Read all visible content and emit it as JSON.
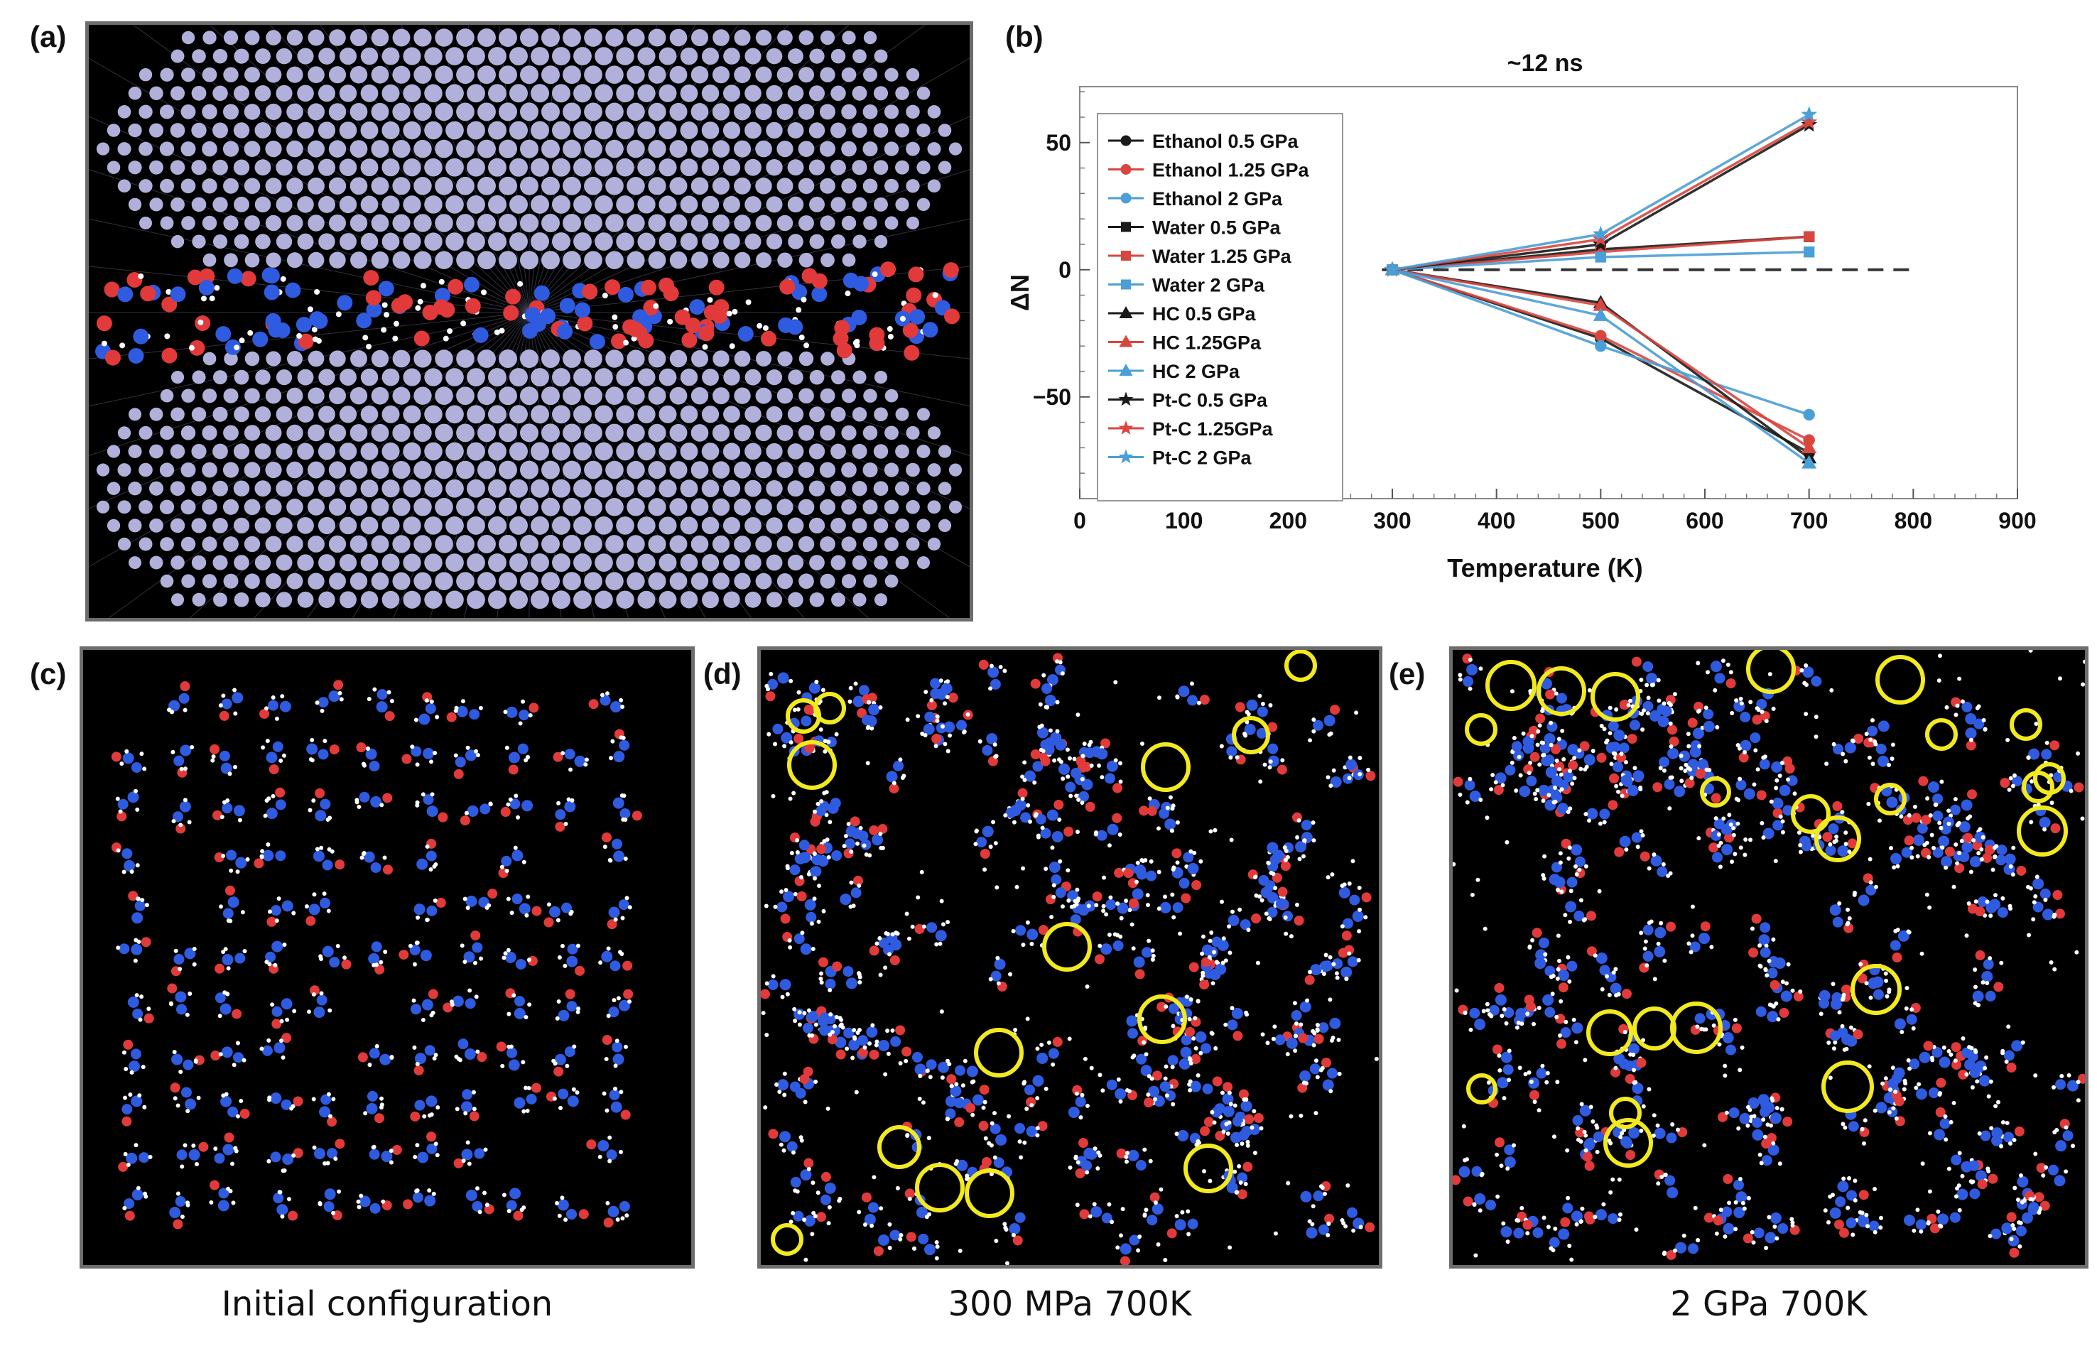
{
  "panels": {
    "a": {
      "label": "(a)"
    },
    "b": {
      "label": "(b)"
    },
    "c": {
      "label": "(c)",
      "caption": "Initial configuration"
    },
    "d": {
      "label": "(d)",
      "caption": "300 MPa 700K"
    },
    "e": {
      "label": "(e)",
      "caption": "2 GPa 700K"
    }
  },
  "colors": {
    "pt_atom": "#b9b9e6",
    "oxygen": "#e23a3a",
    "nitrogen": "#2f5be0",
    "hydrogen": "#ffffff",
    "highlight": "#f2ea1f",
    "black_series": "#1a1a1a",
    "red_series": "#d9463e",
    "blue_series": "#4a9fd6"
  },
  "chart_data": {
    "type": "line",
    "title": "~12 ns",
    "xlabel": "Temperature (K)",
    "ylabel": "ΔN",
    "xlim": [
      0,
      900
    ],
    "ylim": [
      -90,
      72
    ],
    "xticks": [
      0,
      100,
      200,
      300,
      400,
      500,
      600,
      700,
      800,
      900
    ],
    "yticks": [
      -50,
      0,
      50
    ],
    "reference_line": 0,
    "legend_position": "top-left",
    "x": [
      300,
      500,
      700
    ],
    "series": [
      {
        "name": "Ethanol 0.5 GPa",
        "color": "#1a1a1a",
        "marker": "circle",
        "values": [
          0,
          -27,
          -72
        ]
      },
      {
        "name": "Ethanol 1.25 GPa",
        "color": "#d9463e",
        "marker": "circle",
        "values": [
          0,
          -26,
          -67
        ]
      },
      {
        "name": "Ethanol 2 GPa",
        "color": "#4a9fd6",
        "marker": "circle",
        "values": [
          0,
          -30,
          -57
        ]
      },
      {
        "name": "Water 0.5 GPa",
        "color": "#1a1a1a",
        "marker": "square",
        "values": [
          0,
          8,
          13
        ]
      },
      {
        "name": "Water 1.25 GPa",
        "color": "#d9463e",
        "marker": "square",
        "values": [
          0,
          7,
          13
        ]
      },
      {
        "name": "Water 2 GPa",
        "color": "#4a9fd6",
        "marker": "square",
        "values": [
          0,
          5,
          7
        ]
      },
      {
        "name": "HC 0.5 GPa",
        "color": "#1a1a1a",
        "marker": "triangle",
        "values": [
          0,
          -13,
          -74
        ]
      },
      {
        "name": "HC 1.25GPa",
        "color": "#d9463e",
        "marker": "triangle",
        "values": [
          0,
          -14,
          -70
        ]
      },
      {
        "name": "HC 2 GPa",
        "color": "#4a9fd6",
        "marker": "triangle",
        "values": [
          0,
          -18,
          -76
        ]
      },
      {
        "name": "Pt-C 0.5 GPa",
        "color": "#1a1a1a",
        "marker": "star",
        "values": [
          0,
          10,
          57
        ]
      },
      {
        "name": "Pt-C 1.25GPa",
        "color": "#d9463e",
        "marker": "star",
        "values": [
          0,
          12,
          58
        ]
      },
      {
        "name": "Pt-C 2 GPa",
        "color": "#4a9fd6",
        "marker": "star",
        "values": [
          0,
          14,
          61
        ]
      }
    ]
  }
}
